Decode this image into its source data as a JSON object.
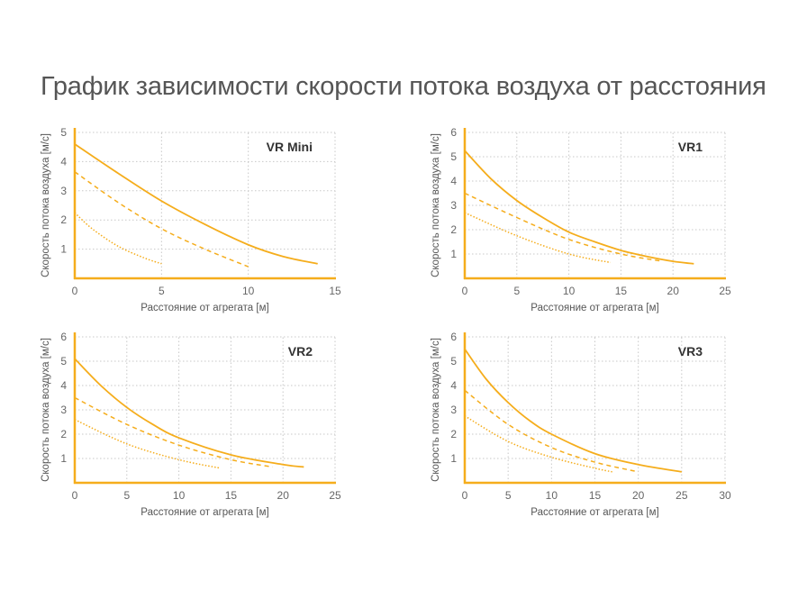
{
  "title": "График зависимости скорости потока воздуха от расстояния",
  "colors": {
    "series": "#f5ad1c",
    "axis": "#f5ad1c",
    "grid": "#c8c8c8"
  },
  "chart_data": [
    {
      "type": "line",
      "title": "VR Mini",
      "xlabel": "Расстояние от агрегата [м]",
      "ylabel": "Скорость потока воздуха [м/с]",
      "xlim": [
        0,
        15
      ],
      "ylim": [
        0,
        5
      ],
      "xticks": [
        "0",
        "5",
        "10",
        "15"
      ],
      "yticks": [
        "1",
        "2",
        "3",
        "4",
        "5"
      ],
      "grid": true,
      "series": [
        {
          "name": "solid",
          "style": "solid",
          "x": [
            0,
            2.5,
            5,
            7.5,
            10,
            12,
            14
          ],
          "y": [
            4.6,
            3.6,
            2.65,
            1.85,
            1.15,
            0.75,
            0.5
          ]
        },
        {
          "name": "dashed",
          "style": "dashed",
          "x": [
            0,
            2.5,
            5,
            7.5,
            10
          ],
          "y": [
            3.65,
            2.6,
            1.7,
            1.0,
            0.4
          ]
        },
        {
          "name": "dotted",
          "style": "dotted",
          "x": [
            0,
            1,
            2.5,
            4,
            5
          ],
          "y": [
            2.25,
            1.7,
            1.1,
            0.7,
            0.5
          ]
        }
      ]
    },
    {
      "type": "line",
      "title": "VR1",
      "xlabel": "Расстояние от агрегата [м]",
      "ylabel": "Скорость потока воздуха [м/с]",
      "xlim": [
        0,
        25
      ],
      "ylim": [
        0,
        6
      ],
      "xticks": [
        "0",
        "5",
        "10",
        "15",
        "20",
        "25"
      ],
      "yticks": [
        "1",
        "2",
        "3",
        "4",
        "5",
        "6"
      ],
      "grid": true,
      "series": [
        {
          "name": "solid",
          "style": "solid",
          "x": [
            0,
            2.5,
            5,
            7.5,
            10,
            12.5,
            15,
            17.5,
            20,
            22
          ],
          "y": [
            5.25,
            4.1,
            3.2,
            2.5,
            1.9,
            1.5,
            1.15,
            0.9,
            0.7,
            0.6
          ]
        },
        {
          "name": "dashed",
          "style": "dashed",
          "x": [
            0,
            5,
            10,
            15,
            19
          ],
          "y": [
            3.5,
            2.5,
            1.6,
            1.0,
            0.7
          ]
        },
        {
          "name": "dotted",
          "style": "dotted",
          "x": [
            0,
            5,
            10,
            14
          ],
          "y": [
            2.7,
            1.75,
            1.0,
            0.65
          ]
        }
      ]
    },
    {
      "type": "line",
      "title": "VR2",
      "xlabel": "Расстояние от агрегата [м]",
      "ylabel": "Скорость потока воздуха [м/с]",
      "xlim": [
        0,
        25
      ],
      "ylim": [
        0,
        6
      ],
      "xticks": [
        "0",
        "5",
        "10",
        "15",
        "20",
        "25"
      ],
      "yticks": [
        "1",
        "2",
        "3",
        "4",
        "5",
        "6"
      ],
      "grid": true,
      "series": [
        {
          "name": "solid",
          "style": "solid",
          "x": [
            0,
            2.5,
            5,
            7.5,
            10,
            15,
            20,
            22
          ],
          "y": [
            5.1,
            4.0,
            3.1,
            2.4,
            1.85,
            1.15,
            0.75,
            0.65
          ]
        },
        {
          "name": "dashed",
          "style": "dashed",
          "x": [
            0,
            5,
            10,
            15,
            19
          ],
          "y": [
            3.5,
            2.4,
            1.55,
            0.95,
            0.65
          ]
        },
        {
          "name": "dotted",
          "style": "dotted",
          "x": [
            0,
            5,
            10,
            14
          ],
          "y": [
            2.6,
            1.6,
            0.95,
            0.6
          ]
        }
      ]
    },
    {
      "type": "line",
      "title": "VR3",
      "xlabel": "Расстояние от агрегата [м]",
      "ylabel": "Скорость потока воздуха [м/с]",
      "xlim": [
        0,
        30
      ],
      "ylim": [
        0,
        6
      ],
      "xticks": [
        "0",
        "5",
        "10",
        "15",
        "20",
        "25",
        "30"
      ],
      "yticks": [
        "1",
        "2",
        "3",
        "4",
        "5",
        "6"
      ],
      "grid": true,
      "series": [
        {
          "name": "solid",
          "style": "solid",
          "x": [
            0,
            2.5,
            5,
            7.5,
            10,
            15,
            20,
            25
          ],
          "y": [
            5.5,
            4.25,
            3.3,
            2.55,
            2.0,
            1.2,
            0.75,
            0.45
          ]
        },
        {
          "name": "dashed",
          "style": "dashed",
          "x": [
            0,
            5,
            10,
            15,
            20
          ],
          "y": [
            3.8,
            2.4,
            1.45,
            0.85,
            0.45
          ]
        },
        {
          "name": "dotted",
          "style": "dotted",
          "x": [
            0,
            5,
            10,
            15,
            17
          ],
          "y": [
            2.75,
            1.7,
            1.05,
            0.6,
            0.45
          ]
        }
      ]
    }
  ]
}
